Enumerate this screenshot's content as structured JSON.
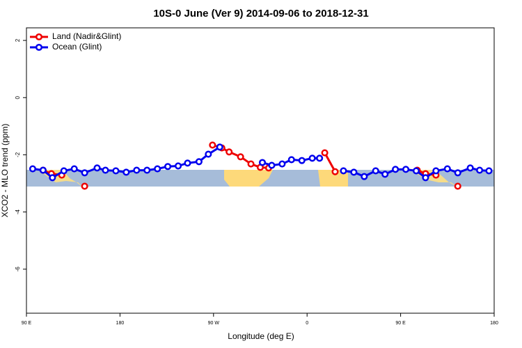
{
  "chart_data": {
    "type": "line",
    "title": "10S-0 June (Ver 9)   2014-09-06 to 2018-12-31",
    "x_label": "Longitude (deg E)",
    "y_label": "XCO2 - MLO trend (ppm)",
    "xlim": [
      90,
      540
    ],
    "ylim": [
      -7.54,
      2.44
    ],
    "xticks": [
      {
        "value": 90,
        "label": "90 E"
      },
      {
        "value": 180,
        "label": "180"
      },
      {
        "value": 270,
        "label": "90 W"
      },
      {
        "value": 360,
        "label": "0"
      },
      {
        "value": 450,
        "label": "90 E"
      },
      {
        "value": 540,
        "label": "180"
      }
    ],
    "yticks": [
      2,
      0,
      -2,
      -4,
      -6
    ],
    "legend": "top-left",
    "series": [
      {
        "name": "Land (Nadir&Glint)",
        "color": "#ee0000",
        "x": [
          106,
          114,
          124,
          null,
          146,
          null,
          269,
          278,
          285,
          296,
          306,
          315,
          323,
          null,
          377,
          387,
          null,
          466,
          474,
          484,
          null,
          505
        ],
        "values": [
          -2.54,
          -2.66,
          -2.71,
          null,
          -3.1,
          null,
          -1.66,
          -1.76,
          -1.9,
          -2.07,
          -2.32,
          -2.44,
          -2.46,
          null,
          -1.93,
          -2.59,
          null,
          -2.54,
          -2.66,
          -2.71,
          null,
          -3.1
        ]
      },
      {
        "name": "Ocean (Glint)",
        "color": "#0000ee",
        "x": [
          96,
          106,
          115,
          126,
          136,
          146,
          158,
          166,
          176,
          186,
          196,
          206,
          216,
          226,
          236,
          245,
          256,
          265,
          276,
          null,
          317,
          326,
          336,
          345,
          355,
          365,
          372,
          null,
          395,
          405,
          415,
          426,
          435,
          445,
          455,
          465,
          474,
          484,
          495,
          505,
          517,
          526,
          535
        ],
        "values": [
          -2.49,
          -2.54,
          -2.8,
          -2.56,
          -2.49,
          -2.63,
          -2.46,
          -2.54,
          -2.56,
          -2.61,
          -2.54,
          -2.54,
          -2.49,
          -2.41,
          -2.39,
          -2.29,
          -2.24,
          -1.98,
          -1.73,
          null,
          -2.27,
          -2.37,
          -2.32,
          -2.17,
          -2.2,
          -2.12,
          -2.12,
          null,
          -2.56,
          -2.61,
          -2.76,
          -2.56,
          -2.68,
          -2.51,
          -2.51,
          -2.56,
          -2.8,
          -2.56,
          -2.49,
          -2.63,
          -2.46,
          -2.54,
          -2.56
        ]
      }
    ]
  }
}
